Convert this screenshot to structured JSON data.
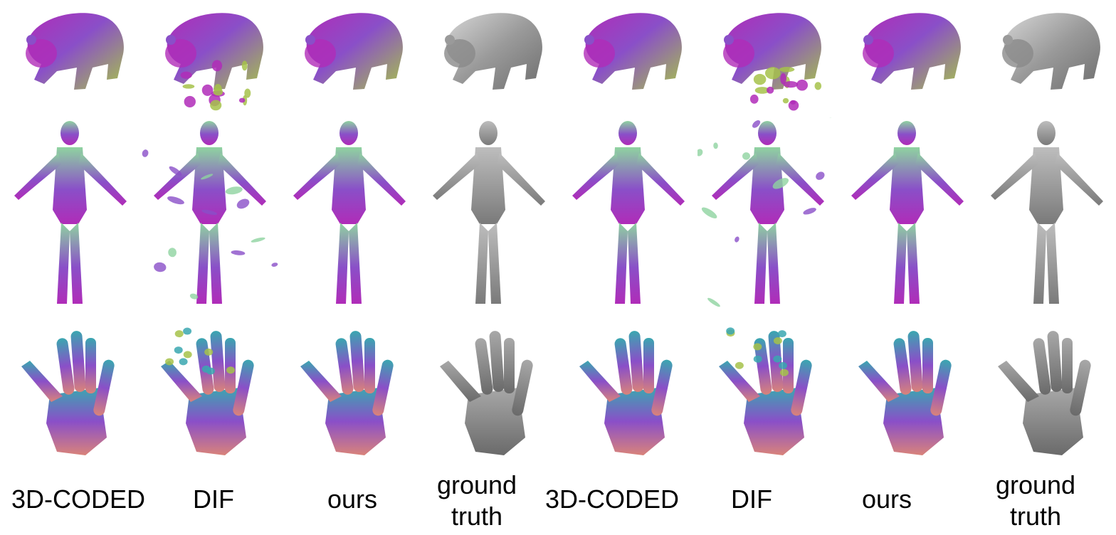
{
  "columns": [
    {
      "label": [
        "3D-CODED"
      ],
      "style": "color",
      "group": 1
    },
    {
      "label": [
        "DIF"
      ],
      "style": "color-noisy",
      "group": 1
    },
    {
      "label": [
        "ours"
      ],
      "style": "color",
      "group": 1
    },
    {
      "label": [
        "ground",
        "truth"
      ],
      "style": "gray",
      "group": 1
    },
    {
      "label": [
        "3D-CODED"
      ],
      "style": "color",
      "group": 2
    },
    {
      "label": [
        "DIF"
      ],
      "style": "color-noisy",
      "group": 2
    },
    {
      "label": [
        "ours"
      ],
      "style": "color",
      "group": 2
    },
    {
      "label": [
        "ground",
        "truth"
      ],
      "style": "gray",
      "group": 2
    }
  ],
  "rows": [
    {
      "subject": "bear"
    },
    {
      "subject": "human-body"
    },
    {
      "subject": "hand"
    }
  ],
  "colors": {
    "purple": "#8a4fc8",
    "magenta": "#b02cb8",
    "green": "#8fd3a0",
    "teal": "#3aa7b0",
    "yellowgreen": "#a6c24a",
    "salmon": "#d9837a",
    "gray": "#9a9a9a"
  }
}
